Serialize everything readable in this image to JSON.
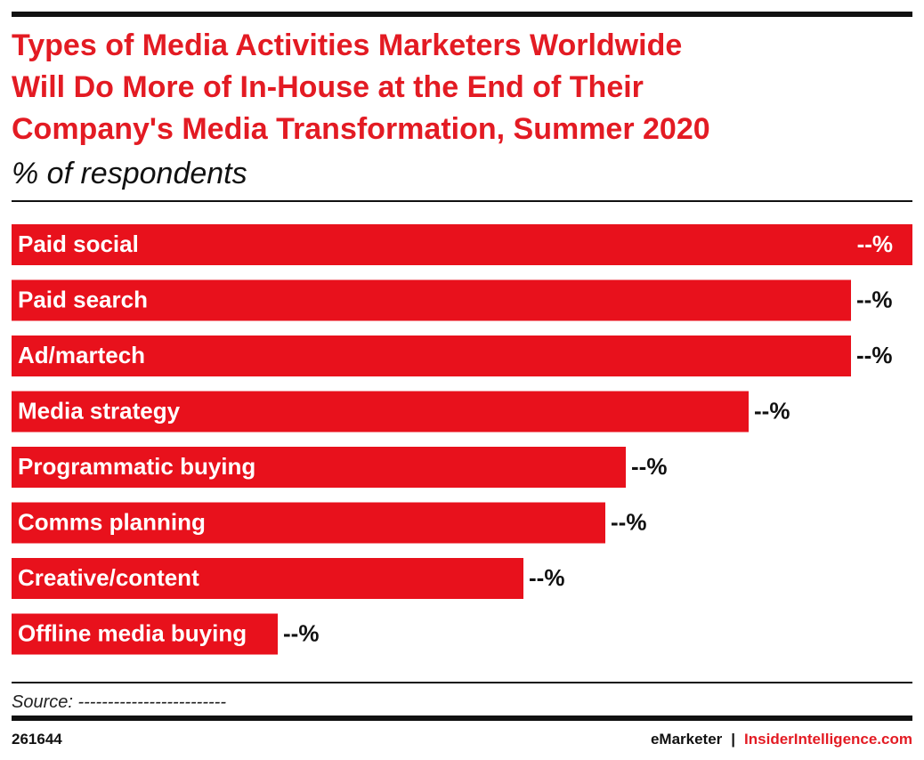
{
  "chart_data": {
    "type": "bar",
    "orientation": "horizontal",
    "title": [
      "Types of Media Activities Marketers Worldwide",
      "Will Do More of In-House at the End of Their",
      "Company's Media Transformation, Summer 2020"
    ],
    "subtitle": "% of respondents",
    "categories": [
      "Paid social",
      "Paid search",
      "Ad/martech",
      "Media strategy",
      "Programmatic buying",
      "Comms planning",
      "Creative/content",
      "Offline media buying"
    ],
    "values": [
      44,
      41,
      41,
      36,
      30,
      29,
      25,
      13
    ],
    "value_labels": [
      "--%",
      "--%",
      "--%",
      "--%",
      "--%",
      "--%",
      "--%",
      "--%"
    ],
    "color": "#e8111c",
    "source": "Source: -------------------------",
    "chart_id": "261644",
    "brand": "eMarketer",
    "separator": "|",
    "site": "InsiderIntelligence.com"
  }
}
